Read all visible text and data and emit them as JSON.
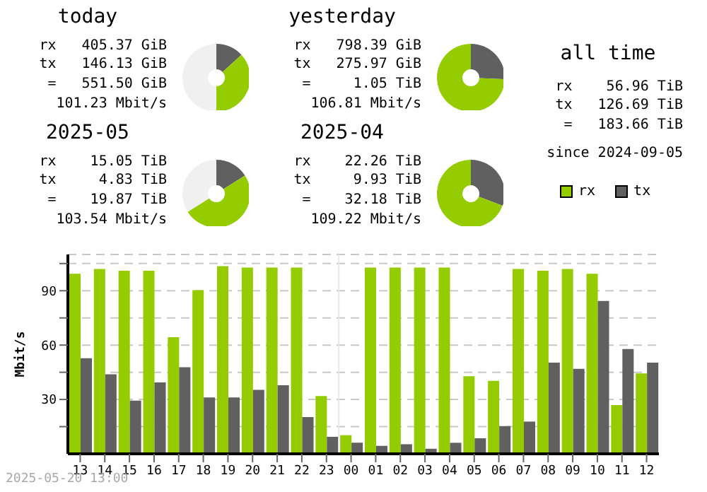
{
  "chart_data": [
    {
      "type": "donut",
      "title": "today",
      "categories": [
        null,
        null,
        null
      ],
      "values": [
        13.2,
        36.8,
        50
      ],
      "colors": [
        "#606060",
        "#94cc00",
        "#f0f0f0"
      ],
      "annotations": [
        "rx   405.37 GiB",
        "tx   146.13 GiB",
        "=   551.50 GiB",
        "101.23 Mbit/s"
      ]
    },
    {
      "type": "donut",
      "title": "yesterday",
      "categories": [
        null,
        null
      ],
      "values": [
        25.7,
        74.3
      ],
      "colors": [
        "#606060",
        "#94cc00"
      ],
      "annotations": [
        "rx   798.39 GiB",
        "tx   275.97 GiB",
        "=     1.05 TiB",
        "106.81 Mbit/s"
      ]
    },
    {
      "type": "donut",
      "title": "2025-05",
      "categories": [
        null,
        null,
        null
      ],
      "values": [
        16,
        50,
        34
      ],
      "colors": [
        "#606060",
        "#94cc00",
        "#f0f0f0"
      ],
      "annotations": [
        "rx    15.05 TiB",
        "tx     4.83 TiB",
        "=    19.87 TiB",
        "103.54 Mbit/s"
      ]
    },
    {
      "type": "donut",
      "title": "2025-04",
      "categories": [
        null,
        null
      ],
      "values": [
        30.8,
        69.2
      ],
      "colors": [
        "#606060",
        "#94cc00"
      ],
      "annotations": [
        "rx    22.26 TiB",
        "tx     9.93 TiB",
        "=    32.18 TiB",
        "109.22 Mbit/s"
      ]
    },
    {
      "type": "other",
      "title": "all time",
      "annotations": [
        "rx    56.96 TiB",
        "tx   126.69 TiB",
        "=   183.66 TiB",
        "since 2024-09-05"
      ]
    },
    {
      "type": "bar",
      "ylabel": "Mbit/s",
      "categories": [
        "13",
        "14",
        "15",
        "16",
        "17",
        "18",
        "19",
        "20",
        "21",
        "22",
        "23",
        "00",
        "01",
        "02",
        "03",
        "04",
        "05",
        "06",
        "07",
        "08",
        "09",
        "10",
        "11",
        "12"
      ],
      "series": [
        {
          "name": "rx",
          "color": "#94cc00",
          "values": [
            99.4,
            102,
            101,
            101,
            64.4,
            90.3,
            103.6,
            102.8,
            102.8,
            102.8,
            31.9,
            10.3,
            102.8,
            102.8,
            102.8,
            102.8,
            42.8,
            40.3,
            102,
            101,
            102,
            99.4,
            26.9,
            44.4
          ]
        },
        {
          "name": "tx",
          "color": "#606060",
          "values": [
            52.8,
            43.9,
            29.4,
            39.4,
            47.8,
            31.1,
            31.1,
            35.3,
            37.8,
            20.3,
            9.4,
            6.1,
            4.4,
            5.3,
            2.8,
            6.1,
            8.6,
            15.3,
            17.8,
            50.3,
            46.9,
            84.4,
            57.8,
            50.3
          ]
        }
      ],
      "ylim": [
        0,
        110
      ],
      "yticks": [
        {
          "value": 15,
          "label": null
        },
        30,
        {
          "value": 45,
          "label": null
        },
        60,
        {
          "value": 75,
          "label": null
        },
        90,
        {
          "value": 105,
          "label": null
        }
      ],
      "grid": "y",
      "legend": "top right",
      "ref_lines": [
        {
          "axis": "x",
          "value": "00",
          "color": "#e8e8e8"
        }
      ],
      "annotations": [
        "2025-05-20 13:00"
      ]
    }
  ]
}
